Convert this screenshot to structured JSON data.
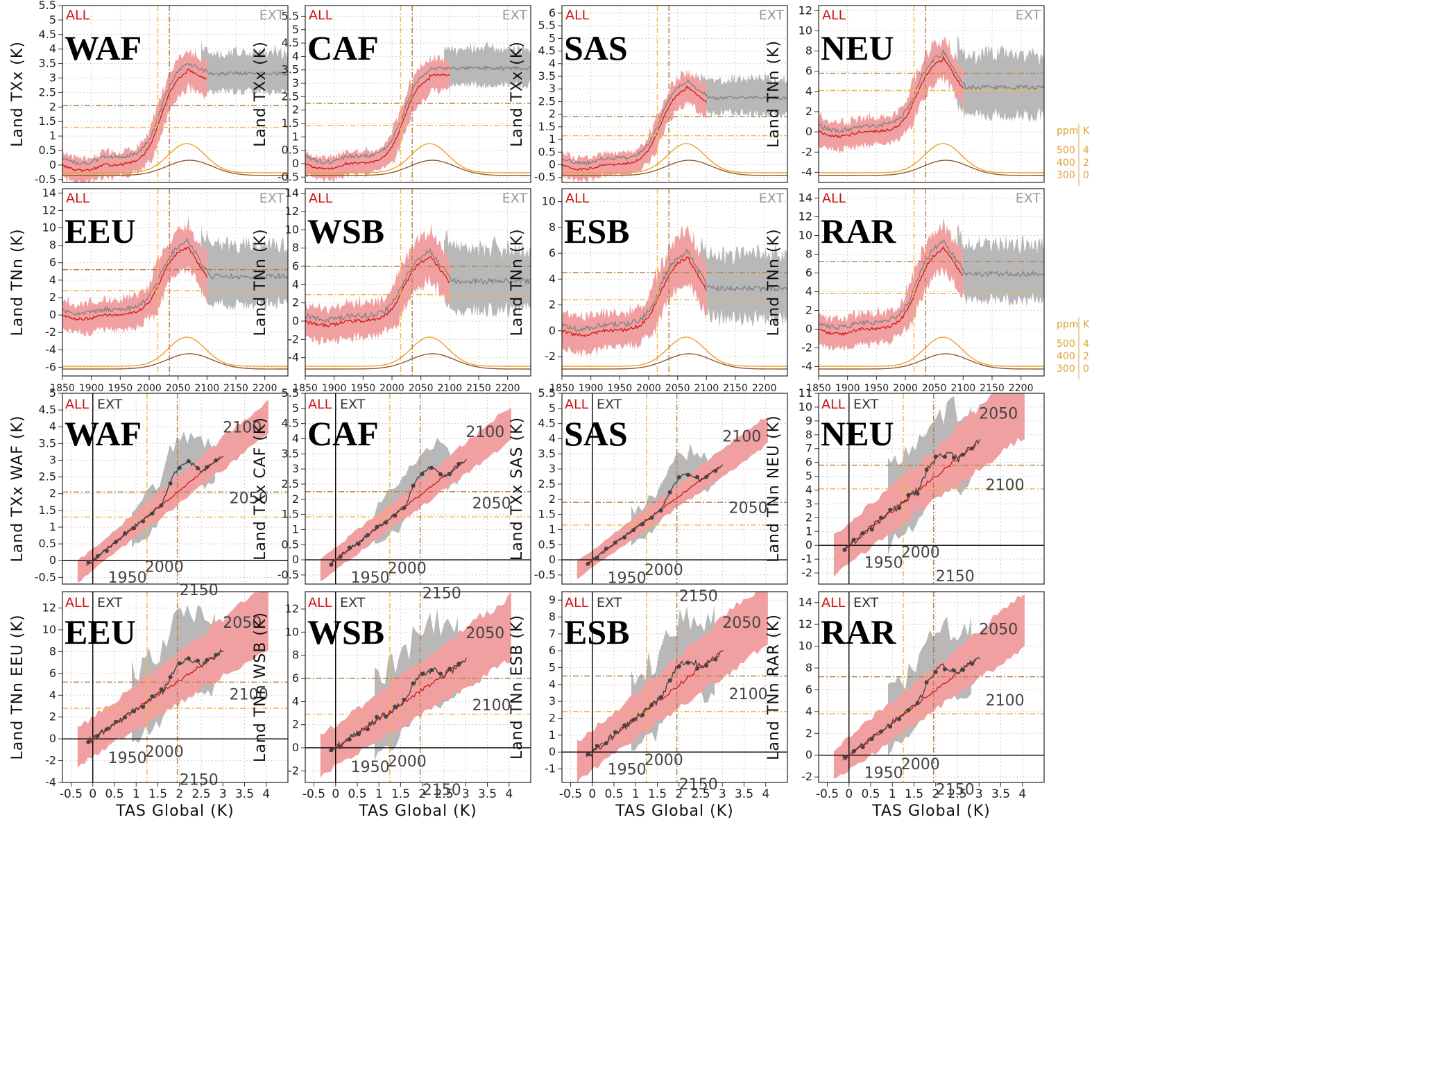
{
  "colors": {
    "all_band": "#f0a0a0",
    "all_line": "#cc1a1a",
    "ext_band": "#b8b8b8",
    "ext_line": "#808080",
    "co2": "#f0a020",
    "forcing": "#8a5a3a",
    "dashed_yellow": "#f2b84a",
    "dashed_brown": "#b8804a"
  },
  "legend": {
    "all": "ALL",
    "ext": "EXT"
  },
  "secondary_axis": {
    "ppm_label": "ppm",
    "k_label": "K",
    "ppm_ticks": [
      "500",
      "400",
      "300"
    ],
    "k_ticks": [
      "4",
      "2",
      "0"
    ]
  },
  "chart_data": [
    {
      "type": "area",
      "panel": "time",
      "region": "WAF",
      "ylabel": "Land TXx (K)",
      "ylim": [
        -0.6,
        5.5
      ],
      "yticks": [
        "-0.5",
        "0",
        "0.5",
        "1",
        "1.5",
        "2",
        "2.5",
        "3",
        "3.5",
        "4",
        "4.5",
        "5",
        "5.5"
      ],
      "xticks": [
        "1850",
        "1900",
        "1950",
        "2000",
        "2050",
        "2100",
        "2150",
        "2200"
      ],
      "x_start": 1850,
      "x_all_end": 2100,
      "x_ext_end": 2240,
      "base": 0.0,
      "peak": 3.3,
      "ext_plateau": 2.9,
      "spread_all": 0.7,
      "spread_ext": 0.6,
      "hline_brown": 2.05,
      "hline_yellow": 1.3,
      "vline_yellow": 2015,
      "vline_brown": 2035,
      "show_xticks": false
    },
    {
      "type": "area",
      "panel": "time",
      "region": "CAF",
      "ylabel": "Land TXx (K)",
      "ylim": [
        -0.7,
        5.9
      ],
      "yticks": [
        "-0.5",
        "0",
        "0.5",
        "1",
        "1.5",
        "2",
        "2.5",
        "3",
        "3.5",
        "4",
        "4.5",
        "5",
        "5.5"
      ],
      "xticks": [
        "1850",
        "1900",
        "1950",
        "2000",
        "2050",
        "2100",
        "2150",
        "2200"
      ],
      "x_start": 1850,
      "x_all_end": 2100,
      "x_ext_end": 2240,
      "base": 0.0,
      "peak": 3.3,
      "ext_plateau": 3.3,
      "spread_all": 0.7,
      "spread_ext": 0.6,
      "hline_brown": 2.25,
      "hline_yellow": 1.42,
      "vline_yellow": 2015,
      "vline_brown": 2035,
      "show_xticks": false
    },
    {
      "type": "area",
      "panel": "time",
      "region": "SAS",
      "ylabel": "Land TXx (K)",
      "ylim": [
        -0.7,
        6.3
      ],
      "yticks": [
        "-0.5",
        "0",
        "0.5",
        "1",
        "1.5",
        "2",
        "2.5",
        "3",
        "3.5",
        "4",
        "4.5",
        "5",
        "5.5",
        "6"
      ],
      "xticks": [
        "1850",
        "1900",
        "1950",
        "2000",
        "2050",
        "2100",
        "2150",
        "2200"
      ],
      "x_start": 1850,
      "x_all_end": 2100,
      "x_ext_end": 2240,
      "base": 0.0,
      "peak": 3.1,
      "ext_plateau": 2.4,
      "spread_all": 0.7,
      "spread_ext": 0.6,
      "hline_brown": 1.9,
      "hline_yellow": 1.15,
      "vline_yellow": 2015,
      "vline_brown": 2035,
      "show_xticks": false
    },
    {
      "type": "area",
      "panel": "time",
      "region": "NEU",
      "ylabel": "Land TNn (K)",
      "ylim": [
        -5,
        12.5
      ],
      "yticks": [
        "-4",
        "-2",
        "0",
        "2",
        "4",
        "6",
        "8",
        "10",
        "12"
      ],
      "xticks": [
        "1850",
        "1900",
        "1950",
        "2000",
        "2050",
        "2100",
        "2150",
        "2200"
      ],
      "x_start": 1850,
      "x_all_end": 2100,
      "x_ext_end": 2240,
      "base": 0.0,
      "peak": 7.4,
      "ext_plateau": 3.8,
      "spread_all": 2.2,
      "spread_ext": 2.6,
      "hline_brown": 5.8,
      "hline_yellow": 4.1,
      "vline_yellow": 2015,
      "vline_brown": 2035,
      "show_xticks": false,
      "show_right_axis": true
    },
    {
      "type": "area",
      "panel": "time",
      "region": "EEU",
      "ylabel": "Land TNn (K)",
      "ylim": [
        -7,
        14.5
      ],
      "yticks": [
        "-6",
        "-4",
        "-2",
        "0",
        "2",
        "4",
        "6",
        "8",
        "10",
        "12",
        "14"
      ],
      "xticks": [
        "1850",
        "1900",
        "1950",
        "2000",
        "2050",
        "2100",
        "2150",
        "2200"
      ],
      "x_start": 1850,
      "x_all_end": 2100,
      "x_ext_end": 2240,
      "base": 0.0,
      "peak": 8.0,
      "ext_plateau": 3.8,
      "spread_all": 2.8,
      "spread_ext": 3.0,
      "hline_brown": 5.2,
      "hline_yellow": 2.8,
      "vline_yellow": 2015,
      "vline_brown": 2035,
      "show_xticks": true
    },
    {
      "type": "area",
      "panel": "time",
      "region": "WSB",
      "ylabel": "Land TNn (K)",
      "ylim": [
        -6,
        14.5
      ],
      "yticks": [
        "-4",
        "-2",
        "0",
        "2",
        "4",
        "6",
        "8",
        "10",
        "12",
        "14"
      ],
      "xticks": [
        "1850",
        "1900",
        "1950",
        "2000",
        "2050",
        "2100",
        "2150",
        "2200"
      ],
      "x_start": 1850,
      "x_all_end": 2100,
      "x_ext_end": 2240,
      "base": 0.0,
      "peak": 7.2,
      "ext_plateau": 3.8,
      "spread_all": 3.0,
      "spread_ext": 3.0,
      "hline_brown": 6.0,
      "hline_yellow": 2.9,
      "vline_yellow": 2015,
      "vline_brown": 2035,
      "show_xticks": true
    },
    {
      "type": "area",
      "panel": "time",
      "region": "ESB",
      "ylabel": "Land TNn (K)",
      "ylim": [
        -3.5,
        11
      ],
      "yticks": [
        "-2",
        "0",
        "2",
        "4",
        "6",
        "8",
        "10"
      ],
      "xticks": [
        "1850",
        "1900",
        "1950",
        "2000",
        "2050",
        "2100",
        "2150",
        "2200"
      ],
      "x_start": 1850,
      "x_all_end": 2100,
      "x_ext_end": 2240,
      "base": 0.0,
      "peak": 5.8,
      "ext_plateau": 2.8,
      "spread_all": 2.2,
      "spread_ext": 2.2,
      "hline_brown": 4.5,
      "hline_yellow": 2.4,
      "vline_yellow": 2015,
      "vline_brown": 2035,
      "show_xticks": true
    },
    {
      "type": "area",
      "panel": "time",
      "region": "RAR",
      "ylabel": "Land TNn (K)",
      "ylim": [
        -5,
        15
      ],
      "yticks": [
        "-4",
        "-2",
        "0",
        "2",
        "4",
        "6",
        "8",
        "10",
        "12",
        "14"
      ],
      "xticks": [
        "1850",
        "1900",
        "1950",
        "2000",
        "2050",
        "2100",
        "2150",
        "2200"
      ],
      "x_start": 1850,
      "x_all_end": 2100,
      "x_ext_end": 2240,
      "base": 0.0,
      "peak": 8.8,
      "ext_plateau": 5.2,
      "spread_all": 2.6,
      "spread_ext": 2.6,
      "hline_brown": 7.2,
      "hline_yellow": 3.8,
      "vline_yellow": 2015,
      "vline_brown": 2035,
      "show_xticks": true,
      "show_right_axis": true
    },
    {
      "type": "scatter",
      "panel": "scaling",
      "region": "WAF",
      "ylabel": "Land TXx WAF (K)",
      "xlabel": "TAS Global (K)",
      "xlim": [
        -0.7,
        4.5
      ],
      "ylim": [
        -0.7,
        5.0
      ],
      "yticks": [
        "-0.5",
        "0",
        "0.5",
        "1",
        "1.5",
        "2",
        "2.5",
        "3",
        "3.5",
        "4",
        "4.5",
        "5"
      ],
      "xticks": [
        "-0.5",
        "0",
        "0.5",
        "1",
        "1.5",
        "2",
        "2.5",
        "3",
        "3.5",
        "4"
      ],
      "slope": 1.05,
      "spread": 0.55,
      "ext_peak": 4.0,
      "hline_brown": 2.05,
      "hline_yellow": 1.3,
      "vline_yellow": 1.25,
      "vline_brown": 1.95,
      "year_labels": [
        "2100",
        "2050",
        "2150",
        "2000",
        "1950"
      ],
      "show_xticks": false
    },
    {
      "type": "scatter",
      "panel": "scaling",
      "region": "CAF",
      "ylabel": "Land TXx CAF (K)",
      "xlabel": "TAS Global (K)",
      "xlim": [
        -0.7,
        4.5
      ],
      "ylim": [
        -0.8,
        5.5
      ],
      "yticks": [
        "-0.5",
        "0",
        "0.5",
        "1",
        "1.5",
        "2",
        "2.5",
        "3",
        "3.5",
        "4",
        "4.5",
        "5",
        "5.5"
      ],
      "xticks": [
        "-0.5",
        "0",
        "0.5",
        "1",
        "1.5",
        "2",
        "2.5",
        "3",
        "3.5",
        "4"
      ],
      "slope": 1.1,
      "spread": 0.6,
      "ext_peak": 3.9,
      "hline_brown": 2.25,
      "hline_yellow": 1.42,
      "vline_yellow": 1.25,
      "vline_brown": 1.95,
      "year_labels": [
        "2100",
        "2050",
        "2150",
        "2000",
        "1950"
      ],
      "show_xticks": false
    },
    {
      "type": "scatter",
      "panel": "scaling",
      "region": "SAS",
      "ylabel": "Land TXx SAS (K)",
      "xlabel": "TAS Global (K)",
      "xlim": [
        -0.7,
        4.5
      ],
      "ylim": [
        -0.8,
        5.5
      ],
      "yticks": [
        "-0.5",
        "0",
        "0.5",
        "1",
        "1.5",
        "2",
        "2.5",
        "3",
        "3.5",
        "4",
        "4.5",
        "5",
        "5.5"
      ],
      "xticks": [
        "-0.5",
        "0",
        "0.5",
        "1",
        "1.5",
        "2",
        "2.5",
        "3",
        "3.5",
        "4"
      ],
      "slope": 1.05,
      "spread": 0.5,
      "ext_peak": 3.3,
      "hline_brown": 1.9,
      "hline_yellow": 1.15,
      "vline_yellow": 1.25,
      "vline_brown": 1.95,
      "year_labels": [
        "2100",
        "2050",
        "2150",
        "2000",
        "1950"
      ],
      "show_xticks": false
    },
    {
      "type": "scatter",
      "panel": "scaling",
      "region": "NEU",
      "ylabel": "Land TNn NEU (K)",
      "xlabel": "TAS Global (K)",
      "xlim": [
        -0.7,
        4.5
      ],
      "ylim": [
        -2.8,
        11
      ],
      "yticks": [
        "-2",
        "-1",
        "0",
        "1",
        "2",
        "3",
        "4",
        "5",
        "6",
        "7",
        "8",
        "9",
        "10",
        "11"
      ],
      "xticks": [
        "-0.5",
        "0",
        "0.5",
        "1",
        "1.5",
        "2",
        "2.5",
        "3",
        "3.5",
        "4"
      ],
      "slope": 2.5,
      "spread": 2.5,
      "ext_peak": 7.2,
      "hline_brown": 5.8,
      "hline_yellow": 4.1,
      "vline_yellow": 1.25,
      "vline_brown": 1.95,
      "year_labels": [
        "2050",
        "2100",
        "2150",
        "2000",
        "1950"
      ],
      "show_xticks": false
    },
    {
      "type": "scatter",
      "panel": "scaling",
      "region": "EEU",
      "ylabel": "Land TNn EEU (K)",
      "xlabel": "TAS Global (K)",
      "xlim": [
        -0.7,
        4.5
      ],
      "ylim": [
        -4,
        13.5
      ],
      "yticks": [
        "-4",
        "-2",
        "0",
        "2",
        "4",
        "6",
        "8",
        "10",
        "12"
      ],
      "xticks": [
        "-0.5",
        "0",
        "0.5",
        "1",
        "1.5",
        "2",
        "2.5",
        "3",
        "3.5",
        "4"
      ],
      "slope": 2.7,
      "spread": 3.0,
      "ext_peak": 8.0,
      "hline_brown": 5.2,
      "hline_yellow": 2.8,
      "vline_yellow": 1.25,
      "vline_brown": 1.95,
      "year_labels": [
        "2050",
        "2100",
        "2150",
        "2000",
        "1950"
      ],
      "show_xticks": true
    },
    {
      "type": "scatter",
      "panel": "scaling",
      "region": "WSB",
      "ylabel": "Land TNn WSB (K)",
      "xlabel": "TAS Global (K)",
      "xlim": [
        -0.7,
        4.5
      ],
      "ylim": [
        -3,
        13.5
      ],
      "yticks": [
        "-2",
        "0",
        "2",
        "4",
        "6",
        "8",
        "10",
        "12"
      ],
      "xticks": [
        "-0.5",
        "0",
        "0.5",
        "1",
        "1.5",
        "2",
        "2.5",
        "3",
        "3.5",
        "4"
      ],
      "slope": 2.5,
      "spread": 3.0,
      "ext_peak": 7.6,
      "hline_brown": 6.0,
      "hline_yellow": 2.9,
      "vline_yellow": 1.25,
      "vline_brown": 1.95,
      "year_labels": [
        "2050",
        "2100",
        "2150",
        "2000",
        "1950"
      ],
      "show_xticks": true
    },
    {
      "type": "scatter",
      "panel": "scaling",
      "region": "ESB",
      "ylabel": "Land TNn ESB (K)",
      "xlabel": "TAS Global (K)",
      "xlim": [
        -0.7,
        4.5
      ],
      "ylim": [
        -1.8,
        9.5
      ],
      "yticks": [
        "-1",
        "0",
        "1",
        "2",
        "3",
        "4",
        "5",
        "6",
        "7",
        "8",
        "9"
      ],
      "xticks": [
        "-0.5",
        "0",
        "0.5",
        "1",
        "1.5",
        "2",
        "2.5",
        "3",
        "3.5",
        "4"
      ],
      "slope": 2.0,
      "spread": 2.0,
      "ext_peak": 6.2,
      "hline_brown": 4.5,
      "hline_yellow": 2.4,
      "vline_yellow": 1.25,
      "vline_brown": 1.95,
      "year_labels": [
        "2050",
        "2100",
        "2150",
        "2000",
        "1950"
      ],
      "show_xticks": true
    },
    {
      "type": "scatter",
      "panel": "scaling",
      "region": "RAR",
      "ylabel": "Land TNn RAR (K)",
      "xlabel": "TAS Global (K)",
      "xlim": [
        -0.7,
        4.5
      ],
      "ylim": [
        -2.5,
        15
      ],
      "yticks": [
        "-2",
        "0",
        "2",
        "4",
        "6",
        "8",
        "10",
        "12",
        "14"
      ],
      "xticks": [
        "-0.5",
        "0",
        "0.5",
        "1",
        "1.5",
        "2",
        "2.5",
        "3",
        "3.5",
        "4"
      ],
      "slope": 3.0,
      "spread": 2.6,
      "ext_peak": 9.8,
      "hline_brown": 7.2,
      "hline_yellow": 3.8,
      "vline_yellow": 1.25,
      "vline_brown": 1.95,
      "year_labels": [
        "2050",
        "2100",
        "2150",
        "2000",
        "1950"
      ],
      "show_xticks": true
    }
  ]
}
